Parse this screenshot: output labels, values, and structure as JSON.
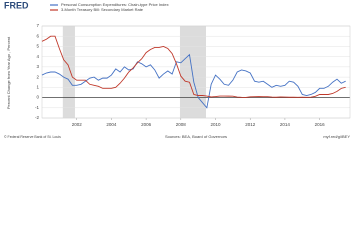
{
  "chart_data": {
    "type": "line",
    "logo": "FRED",
    "y_label": "Percent Change from Year Ago , Percent",
    "source": "Sources: BEA, Board of Governors",
    "credit": "© Federal Reserve Bank of St. Louis",
    "link": "myf.red/g/iBEY",
    "x": [
      2000,
      2000.25,
      2000.5,
      2000.75,
      2001,
      2001.25,
      2001.5,
      2001.75,
      2002,
      2002.25,
      2002.5,
      2002.75,
      2003,
      2003.25,
      2003.5,
      2003.75,
      2004,
      2004.25,
      2004.5,
      2004.75,
      2005,
      2005.25,
      2005.5,
      2005.75,
      2006,
      2006.25,
      2006.5,
      2006.75,
      2007,
      2007.25,
      2007.5,
      2007.75,
      2008,
      2008.25,
      2008.5,
      2008.75,
      2009,
      2009.25,
      2009.5,
      2009.75,
      2010,
      2010.25,
      2010.5,
      2010.75,
      2011,
      2011.25,
      2011.5,
      2011.75,
      2012,
      2012.25,
      2012.5,
      2012.75,
      2013,
      2013.25,
      2013.5,
      2013.75,
      2014,
      2014.25,
      2014.5,
      2014.75,
      2015,
      2015.25,
      2015.5,
      2015.75,
      2016,
      2016.25,
      2016.5,
      2016.75,
      2017,
      2017.25,
      2017.5
    ],
    "series": [
      {
        "name": "Personal Consumption Expenditures: Chain-type Price Index",
        "color": "#4572c4",
        "values": [
          2.2,
          2.4,
          2.5,
          2.5,
          2.3,
          2.0,
          1.8,
          1.2,
          1.2,
          1.3,
          1.6,
          1.9,
          2.0,
          1.7,
          1.9,
          1.9,
          2.2,
          2.8,
          2.5,
          3.0,
          2.7,
          2.8,
          3.5,
          3.3,
          3.0,
          3.2,
          2.7,
          1.9,
          2.3,
          2.6,
          2.3,
          3.5,
          3.4,
          3.8,
          4.2,
          1.5,
          0.0,
          -0.5,
          -1.0,
          1.3,
          2.2,
          1.8,
          1.3,
          1.2,
          1.7,
          2.5,
          2.7,
          2.6,
          2.4,
          1.6,
          1.5,
          1.6,
          1.3,
          1.0,
          1.2,
          1.1,
          1.2,
          1.6,
          1.5,
          1.1,
          0.3,
          0.2,
          0.3,
          0.5,
          0.9,
          0.9,
          1.1,
          1.5,
          1.8,
          1.4,
          1.6
        ]
      },
      {
        "name": "3-Month Treasury Bill: Secondary Market Rate",
        "color": "#c0392b",
        "values": [
          5.5,
          5.7,
          6.0,
          6.0,
          4.8,
          3.7,
          3.2,
          2.0,
          1.7,
          1.7,
          1.7,
          1.3,
          1.2,
          1.1,
          0.9,
          0.9,
          0.9,
          1.0,
          1.4,
          1.9,
          2.5,
          2.9,
          3.4,
          3.8,
          4.4,
          4.7,
          4.9,
          4.9,
          5.0,
          4.8,
          4.3,
          3.3,
          2.1,
          1.6,
          1.5,
          0.3,
          0.2,
          0.2,
          0.15,
          0.06,
          0.1,
          0.15,
          0.15,
          0.14,
          0.13,
          0.05,
          0.02,
          0.01,
          0.07,
          0.09,
          0.1,
          0.09,
          0.09,
          0.05,
          0.03,
          0.06,
          0.05,
          0.03,
          0.03,
          0.02,
          0.03,
          0.02,
          0.04,
          0.12,
          0.3,
          0.3,
          0.3,
          0.4,
          0.6,
          0.9,
          1.0
        ]
      }
    ],
    "recessions": [
      [
        2001.2,
        2001.9
      ],
      [
        2007.95,
        2009.45
      ]
    ],
    "xlim": [
      2000,
      2017.75
    ],
    "ylim": [
      -2,
      7
    ],
    "xticks": [
      2002,
      2004,
      2006,
      2008,
      2010,
      2012,
      2014,
      2016
    ],
    "yticks": [
      -2,
      -1,
      0,
      1,
      2,
      3,
      4,
      5,
      6,
      7
    ],
    "grid": true
  }
}
